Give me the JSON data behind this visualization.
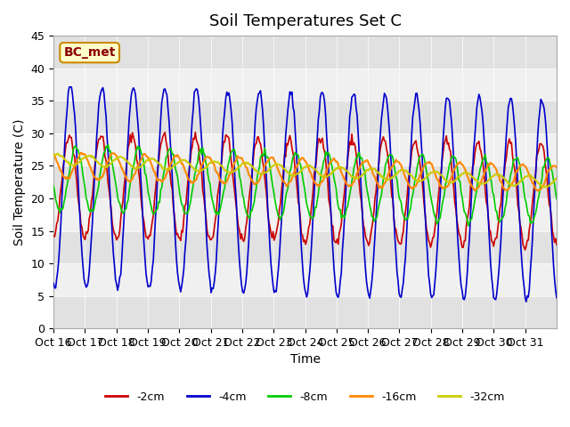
{
  "title": "Soil Temperatures Set C",
  "xlabel": "Time",
  "ylabel": "Soil Temperature (C)",
  "annotation": "BC_met",
  "ylim": [
    0,
    45
  ],
  "yticks": [
    0,
    5,
    10,
    15,
    20,
    25,
    30,
    35,
    40,
    45
  ],
  "xtick_labels": [
    "Oct 16",
    "Oct 17",
    "Oct 18",
    "Oct 19",
    "Oct 20",
    "Oct 21",
    "Oct 22",
    "Oct 23",
    "Oct 24",
    "Oct 25",
    "Oct 26",
    "Oct 27",
    "Oct 28",
    "Oct 29",
    "Oct 30",
    "Oct 31"
  ],
  "colors": {
    "-2cm": "#cc0000",
    "-4cm": "#0000cc",
    "-8cm": "#00cc00",
    "-16cm": "#ff8800",
    "-32cm": "#cccc00"
  },
  "legend_labels": [
    "-2cm",
    "-4cm",
    "-8cm",
    "-16cm",
    "-32cm"
  ],
  "plot_bg": "#f0f0f0",
  "band_color": "#d8d8d8",
  "title_fontsize": 13,
  "axis_fontsize": 10,
  "tick_fontsize": 9,
  "n_points": 480,
  "n_days": 16
}
